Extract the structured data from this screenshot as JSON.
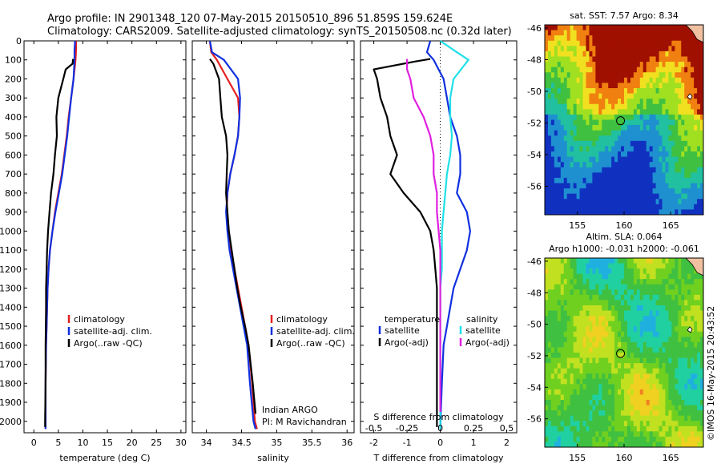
{
  "header": {
    "line1": "Argo profile: IN 2901348_120 07-May-2015 20150510_896 51.859S 159.624E",
    "line2": "Climatology: CARS2009. Satellite-adjusted climatology: synTS_20150508.nc (0.32d later)"
  },
  "credit": "Indian ARGO",
  "pi": "PI: M Ravichandran",
  "side_stamp": "©IMOS 16-May-2015 20:43:52",
  "colors": {
    "climatology": "#e62020",
    "satellite": "#1030e0",
    "argo": "#000000",
    "sal_sat": "#20e0e8",
    "sal_argo": "#e020e0"
  },
  "chart_data": [
    {
      "type": "line",
      "xlabel": "temperature (deg C)",
      "ylabel": "",
      "xlim": [
        -2,
        31
      ],
      "ylim": [
        2060,
        0
      ],
      "xticks": [
        0,
        5,
        10,
        15,
        20,
        25,
        30
      ],
      "yticks": [
        0,
        100,
        200,
        300,
        400,
        500,
        600,
        700,
        800,
        900,
        1000,
        1100,
        1200,
        1300,
        1400,
        1500,
        1600,
        1700,
        1800,
        1900,
        2000
      ],
      "legend": [
        "climatology",
        "satellite-adj. clim.",
        "Argo(..raw -QC)"
      ],
      "series": [
        {
          "name": "climatology",
          "color": "#e62020",
          "x": [
            8.6,
            8.6,
            8.5,
            8.1,
            7.6,
            7.1,
            6.7,
            6.2,
            5.7,
            5.0,
            4.3,
            3.8,
            3.3,
            3.0,
            2.8,
            2.7,
            2.6,
            2.5,
            2.4,
            2.4,
            2.4
          ],
          "y": [
            0,
            50,
            100,
            200,
            300,
            400,
            500,
            600,
            700,
            800,
            900,
            1000,
            1100,
            1200,
            1300,
            1400,
            1500,
            1600,
            1800,
            2000,
            2040
          ]
        },
        {
          "name": "satellite-adj. clim.",
          "color": "#1030e0",
          "x": [
            8.4,
            8.3,
            8.3,
            8.1,
            7.6,
            7.2,
            6.8,
            6.3,
            5.8,
            5.1,
            4.4,
            3.8,
            3.3,
            3.0,
            2.8,
            2.7,
            2.6,
            2.5,
            2.4,
            2.4,
            2.4
          ],
          "y": [
            0,
            50,
            100,
            200,
            300,
            400,
            500,
            600,
            700,
            800,
            900,
            1000,
            1100,
            1200,
            1300,
            1400,
            1500,
            1600,
            1800,
            2000,
            2040
          ]
        },
        {
          "name": "Argo(..raw -QC)",
          "color": "#000000",
          "x": [
            8.0,
            7.9,
            6.5,
            6.0,
            5.0,
            4.6,
            4.7,
            4.3,
            4.0,
            3.5,
            3.2,
            2.9,
            2.7,
            2.6,
            2.5,
            2.5,
            2.4,
            2.4,
            2.3,
            2.3
          ],
          "y": [
            95,
            120,
            150,
            200,
            300,
            400,
            500,
            600,
            700,
            800,
            900,
            1000,
            1100,
            1200,
            1300,
            1400,
            1600,
            1800,
            2000,
            2030
          ]
        }
      ]
    },
    {
      "type": "line",
      "xlabel": "salinity",
      "ylabel": "",
      "xlim": [
        33.8,
        36.1
      ],
      "ylim": [
        2060,
        0
      ],
      "xticks": [
        34,
        34.5,
        35,
        35.5,
        36
      ],
      "legend": [
        "climatology",
        "satellite-adj. clim.",
        "Argo(..raw -QC)"
      ],
      "series": [
        {
          "name": "climatology",
          "color": "#e62020",
          "x": [
            34.05,
            34.07,
            34.15,
            34.3,
            34.45,
            34.47,
            34.45,
            34.4,
            34.34,
            34.3,
            34.29,
            34.31,
            34.35,
            34.4,
            34.45,
            34.5,
            34.55,
            34.6,
            34.65,
            34.69,
            34.72
          ],
          "y": [
            0,
            60,
            100,
            200,
            300,
            400,
            500,
            600,
            700,
            800,
            900,
            1000,
            1100,
            1200,
            1300,
            1400,
            1500,
            1600,
            1800,
            2000,
            2040
          ]
        },
        {
          "name": "satellite-adj. clim.",
          "color": "#1030e0",
          "x": [
            34.05,
            34.08,
            34.25,
            34.45,
            34.48,
            34.47,
            34.45,
            34.4,
            34.34,
            34.3,
            34.28,
            34.3,
            34.33,
            34.38,
            34.43,
            34.48,
            34.53,
            34.58,
            34.62,
            34.67,
            34.7
          ],
          "y": [
            0,
            60,
            100,
            200,
            300,
            400,
            500,
            600,
            700,
            800,
            900,
            1000,
            1100,
            1200,
            1300,
            1400,
            1500,
            1600,
            1800,
            2000,
            2040
          ]
        },
        {
          "name": "Argo(..raw -QC)",
          "color": "#000000",
          "x": [
            34.05,
            34.1,
            34.18,
            34.2,
            34.22,
            34.28,
            34.3,
            34.29,
            34.28,
            34.3,
            34.32,
            34.36,
            34.4,
            34.44,
            34.49,
            34.55,
            34.6,
            34.66,
            34.7
          ],
          "y": [
            95,
            120,
            200,
            300,
            400,
            500,
            600,
            700,
            800,
            900,
            1000,
            1100,
            1200,
            1300,
            1400,
            1500,
            1600,
            1800,
            1960
          ]
        }
      ]
    },
    {
      "type": "line",
      "xlabel": "T difference from climatology",
      "top_label": "S difference from climatology",
      "xlim": [
        -2.4,
        2.3
      ],
      "ylim": [
        2060,
        0
      ],
      "xticks": [
        -2,
        -1,
        0,
        1,
        2
      ],
      "s_ticks": [
        {
          "v": -0.5,
          "t": "-0.5"
        },
        {
          "v": -0.25,
          "t": "-0.25"
        },
        {
          "v": 0,
          "t": "0"
        },
        {
          "v": 0.25,
          "t": "0.25"
        },
        {
          "v": 0.5,
          "t": "0.5"
        }
      ],
      "legend_t_title": "temperature",
      "legend_s_title": "salinity",
      "legend_t": [
        "satellite",
        "Argo(-adj)"
      ],
      "legend_s": [
        "satellite",
        "Argo(-adj)"
      ],
      "series": [
        {
          "name": "temperature satellite",
          "color": "#1030e0",
          "x": [
            -0.3,
            -0.4,
            -0.2,
            0.1,
            0.2,
            0.3,
            0.5,
            0.6,
            0.6,
            0.5,
            0.8,
            0.9,
            0.8,
            0.6,
            0.4,
            0.3,
            0.2,
            0.1,
            0.05,
            0.0
          ],
          "y": [
            0,
            60,
            100,
            200,
            300,
            400,
            500,
            600,
            700,
            800,
            900,
            1000,
            1100,
            1200,
            1300,
            1400,
            1500,
            1600,
            1800,
            2040
          ]
        },
        {
          "name": "temperature Argo(-adj)",
          "color": "#000000",
          "x": [
            -0.3,
            -0.8,
            -2.0,
            -1.9,
            -1.8,
            -1.6,
            -1.5,
            -1.3,
            -1.5,
            -1.1,
            -0.6,
            -0.3,
            -0.2,
            -0.15,
            -0.1,
            -0.1,
            -0.1,
            -0.1,
            -0.1
          ],
          "y": [
            95,
            110,
            150,
            200,
            300,
            400,
            500,
            600,
            700,
            800,
            900,
            1000,
            1100,
            1200,
            1300,
            1400,
            1600,
            1800,
            2030
          ]
        },
        {
          "name": "salinity satellite",
          "color": "#20e0e8",
          "x": [
            0.0,
            0.5,
            0.85,
            0.4,
            0.3,
            0.3,
            0.35,
            0.3,
            0.2,
            0.15,
            0.1,
            0.05,
            0.05,
            0.05,
            0.0,
            0.0,
            0.0,
            0.0,
            0.0
          ],
          "y": [
            0,
            60,
            100,
            200,
            300,
            400,
            500,
            600,
            700,
            800,
            900,
            1000,
            1100,
            1200,
            1300,
            1400,
            1600,
            1800,
            2040
          ]
        },
        {
          "name": "salinity Argo(-adj)",
          "color": "#e020e0",
          "x": [
            -1.0,
            -1.0,
            -0.9,
            -0.8,
            -0.5,
            -0.3,
            -0.2,
            -0.2,
            -0.1,
            -0.1,
            -0.05,
            0.0,
            0.0,
            0.0,
            0.0,
            0.0
          ],
          "y": [
            95,
            150,
            200,
            300,
            400,
            500,
            600,
            700,
            800,
            900,
            1000,
            1100,
            1200,
            1400,
            1600,
            1950
          ]
        }
      ]
    },
    {
      "type": "heatmap",
      "title": "sat. SST: 7.57 Argo: 8.34",
      "xlim": [
        151.5,
        168.5
      ],
      "ylim": [
        -57.8,
        -45.8
      ],
      "xticks": [
        155,
        160,
        165
      ],
      "yticks": [
        -46,
        -48,
        -50,
        -52,
        -54,
        -56
      ],
      "marker": {
        "lon": 159.62,
        "lat": -51.86
      }
    },
    {
      "type": "heatmap",
      "title": "Altim. SLA: 0.064",
      "subtitle": "Argo h1000: -0.031 h2000: -0.061",
      "xlim": [
        151.5,
        168.5
      ],
      "ylim": [
        -57.8,
        -45.8
      ],
      "xticks": [
        155,
        160,
        165
      ],
      "yticks": [
        -46,
        -48,
        -50,
        -52,
        -54,
        -56
      ],
      "marker": {
        "lon": 159.62,
        "lat": -51.86
      }
    }
  ]
}
